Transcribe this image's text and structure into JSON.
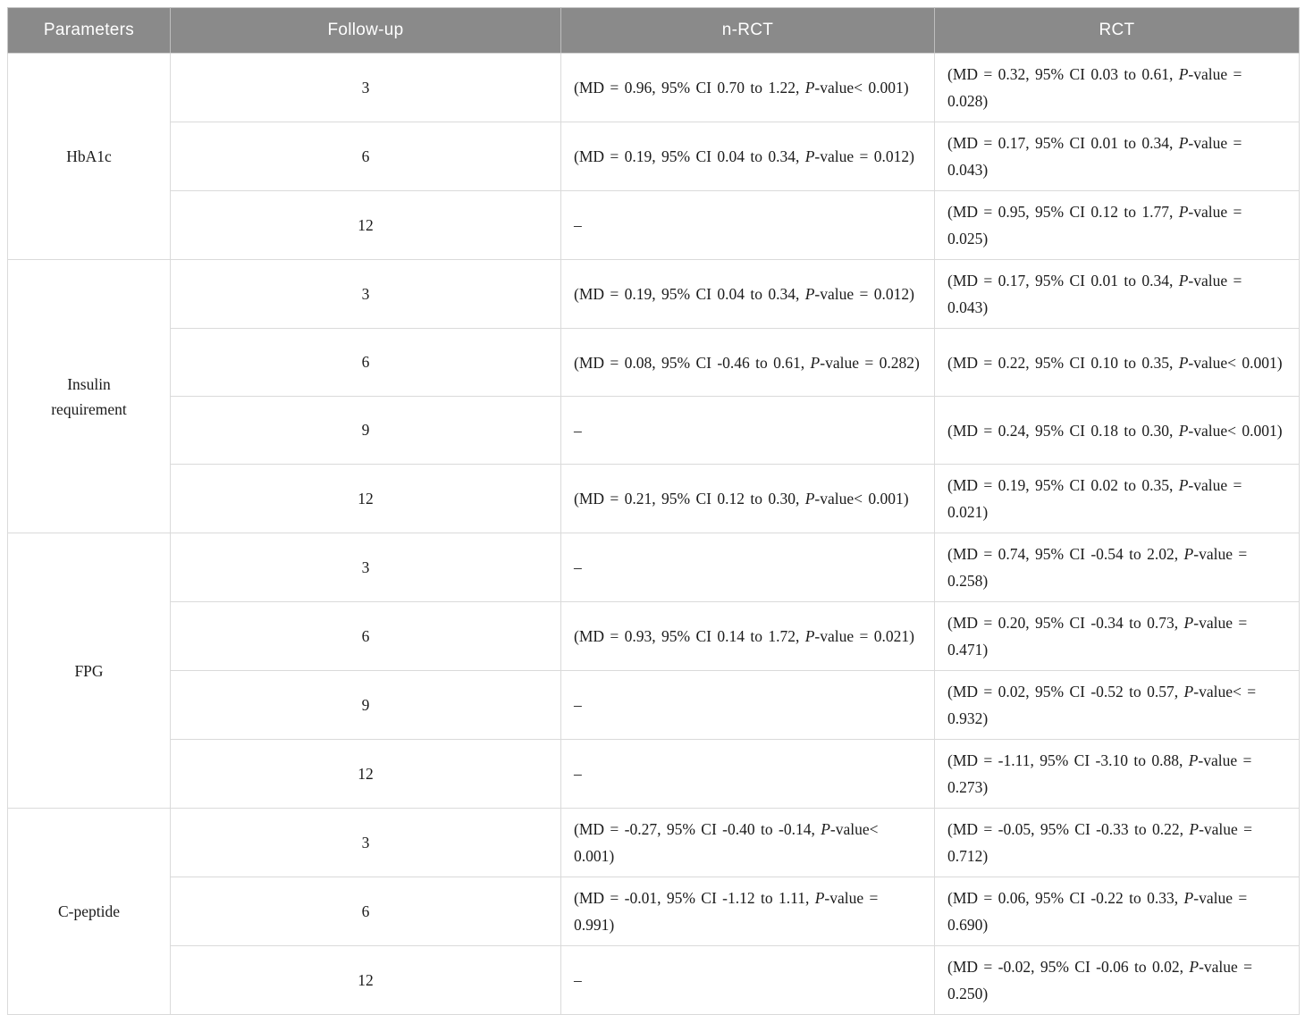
{
  "table": {
    "columns": [
      {
        "label": "Parameters"
      },
      {
        "label": "Follow-up"
      },
      {
        "label": "n-RCT"
      },
      {
        "label": "RCT"
      }
    ],
    "empty_marker": "–",
    "colors": {
      "header_bg": "#8a8a8a",
      "header_text": "#ffffff",
      "body_text": "#1b1b1b",
      "row_border": "#dadada",
      "group_border": "#bfbfbf"
    },
    "groups": [
      {
        "parameter": "HbA1c",
        "rows": [
          {
            "followup": "3",
            "nrct": "(MD = 0.96, 95% CI 0.70 to 1.22, P-value< 0.001)",
            "rct": "(MD = 0.32, 95% CI 0.03 to 0.61, P-value = 0.028)"
          },
          {
            "followup": "6",
            "nrct": "(MD = 0.19, 95% CI 0.04 to 0.34, P-value = 0.012)",
            "rct": "(MD = 0.17, 95% CI 0.01 to 0.34, P-value = 0.043)"
          },
          {
            "followup": "12",
            "nrct": "–",
            "rct": "(MD = 0.95, 95% CI 0.12 to 1.77, P-value = 0.025)"
          }
        ]
      },
      {
        "parameter": "Insulin requirement",
        "rows": [
          {
            "followup": "3",
            "nrct": "(MD = 0.19, 95% CI 0.04 to 0.34, P-value = 0.012)",
            "rct": "(MD = 0.17, 95% CI 0.01 to 0.34, P-value = 0.043)"
          },
          {
            "followup": "6",
            "nrct": "(MD = 0.08, 95% CI -0.46 to 0.61, P-value = 0.282)",
            "rct": "(MD = 0.22, 95% CI 0.10 to 0.35, P-value< 0.001)"
          },
          {
            "followup": "9",
            "nrct": "–",
            "rct": "(MD = 0.24, 95% CI 0.18 to 0.30, P-value< 0.001)"
          },
          {
            "followup": "12",
            "nrct": "(MD = 0.21, 95% CI 0.12 to 0.30, P-value< 0.001)",
            "rct": "(MD = 0.19, 95% CI 0.02 to 0.35, P-value = 0.021)"
          }
        ]
      },
      {
        "parameter": "FPG",
        "rows": [
          {
            "followup": "3",
            "nrct": "–",
            "rct": "(MD = 0.74, 95% CI -0.54 to 2.02, P-value = 0.258)"
          },
          {
            "followup": "6",
            "nrct": "(MD = 0.93, 95% CI 0.14 to 1.72, P-value = 0.021)",
            "rct": "(MD = 0.20, 95% CI -0.34 to 0.73, P-value = 0.471)"
          },
          {
            "followup": "9",
            "nrct": "–",
            "rct": "(MD = 0.02, 95% CI -0.52 to 0.57, P-value< = 0.932)"
          },
          {
            "followup": "12",
            "nrct": "–",
            "rct": "(MD = -1.11, 95% CI -3.10 to 0.88, P-value = 0.273)"
          }
        ]
      },
      {
        "parameter": "C-peptide",
        "rows": [
          {
            "followup": "3",
            "nrct": "(MD = -0.27, 95% CI -0.40 to -0.14, P-value< 0.001)",
            "rct": "(MD = -0.05, 95% CI -0.33 to 0.22, P-value = 0.712)"
          },
          {
            "followup": "6",
            "nrct": "(MD = -0.01, 95% CI -1.12 to 1.11, P-value = 0.991)",
            "rct": "(MD = 0.06, 95% CI -0.22 to 0.33, P-value = 0.690)"
          },
          {
            "followup": "12",
            "nrct": "–",
            "rct": "(MD = -0.02, 95% CI -0.06 to 0.02, P-value = 0.250)"
          }
        ]
      }
    ]
  }
}
